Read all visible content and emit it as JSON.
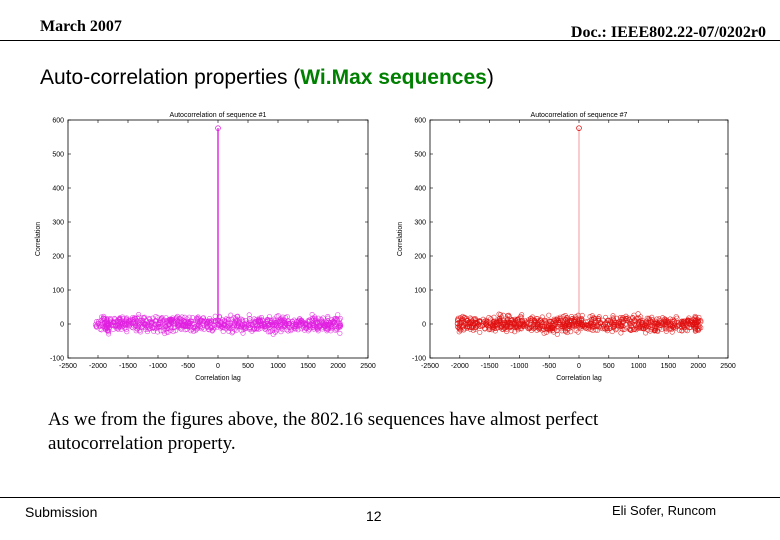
{
  "header": {
    "date": "March 2007",
    "doc_id": "Doc.: IEEE802.22-07/0202r0"
  },
  "title": {
    "prefix": "Auto-correlation properties (",
    "highlight": "Wi.Max sequences",
    "suffix": ")"
  },
  "body_text": "As we from the figures above, the 802.16 sequences have almost perfect autocorrelation property.",
  "footer": {
    "left": "Submission",
    "page": "12",
    "right": "Eli Sofer, Runcom"
  },
  "colors": {
    "chart1": "#e020e0",
    "chart2": "#e01010",
    "highlight": "#008000"
  },
  "chart_data": [
    {
      "type": "scatter",
      "title": "Autocorrelation of sequence #1",
      "xlabel": "Correlation lag",
      "ylabel": "Correlation",
      "xlim": [
        -2500,
        2500
      ],
      "ylim": [
        -100,
        600
      ],
      "xticks": [
        "-2500",
        "-2000",
        "-1500",
        "-1000",
        "-500",
        "0",
        "500",
        "1000",
        "1500",
        "2000",
        "2500"
      ],
      "yticks": [
        "-100",
        "0",
        "100",
        "200",
        "300",
        "400",
        "500",
        "600"
      ],
      "peak": {
        "x": 0,
        "y": 576
      },
      "noise_range": [
        -2047,
        2047
      ],
      "noise_amplitude": 25,
      "color": "#e020e0"
    },
    {
      "type": "scatter",
      "title": "Autocorrelation of sequence #7",
      "xlabel": "Correlation lag",
      "ylabel": "Correlation",
      "xlim": [
        -2500,
        2500
      ],
      "ylim": [
        -100,
        600
      ],
      "xticks": [
        "-2500",
        "-2000",
        "-1500",
        "-1000",
        "-500",
        "0",
        "500",
        "1000",
        "1500",
        "2000",
        "2500"
      ],
      "yticks": [
        "-100",
        "0",
        "100",
        "200",
        "300",
        "400",
        "500",
        "600"
      ],
      "peak": {
        "x": 0,
        "y": 576
      },
      "noise_range": [
        -2047,
        2047
      ],
      "noise_amplitude": 25,
      "color": "#e01010"
    }
  ]
}
